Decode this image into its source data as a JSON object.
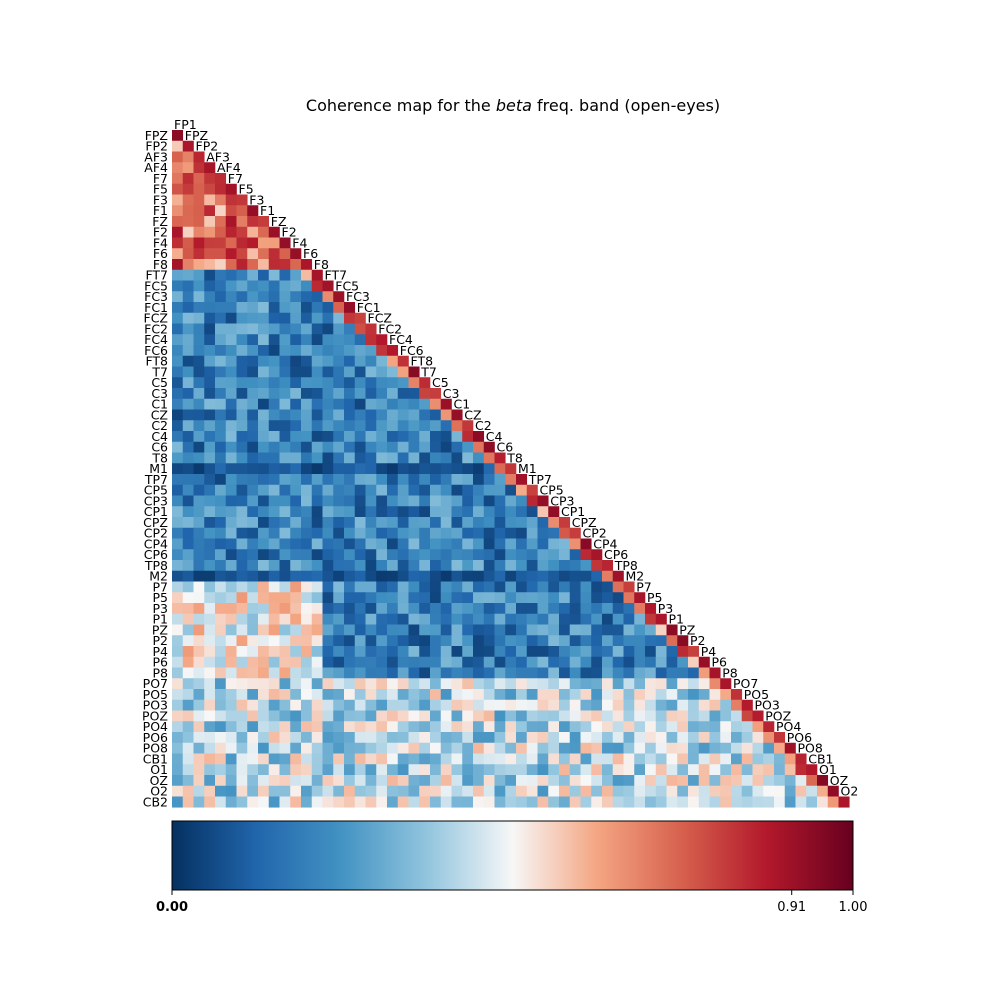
{
  "chart_data": {
    "type": "heatmap",
    "shape": "lower-triangular",
    "title_pre": "Coherence map for the ",
    "title_italic": "beta",
    "title_post": " freq. band (open-eyes)",
    "channels": [
      "FP1",
      "FPZ",
      "FP2",
      "AF3",
      "AF4",
      "F7",
      "F5",
      "F3",
      "F1",
      "FZ",
      "F2",
      "F4",
      "F6",
      "F8",
      "FT7",
      "FC5",
      "FC3",
      "FC1",
      "FCZ",
      "FC2",
      "FC4",
      "FC6",
      "FT8",
      "T7",
      "C5",
      "C3",
      "C1",
      "CZ",
      "C2",
      "C4",
      "C6",
      "T8",
      "M1",
      "TP7",
      "CP5",
      "CP3",
      "CP1",
      "CPZ",
      "CP2",
      "CP4",
      "CP6",
      "TP8",
      "M2",
      "P7",
      "P5",
      "P3",
      "P1",
      "PZ",
      "P2",
      "P4",
      "P6",
      "P8",
      "PO7",
      "PO5",
      "PO3",
      "POZ",
      "PO4",
      "PO6",
      "PO8",
      "CB1",
      "O1",
      "OZ",
      "O2",
      "CB2"
    ],
    "colormap": "RdBu_r",
    "colorbar": {
      "min": 0.0,
      "max": 1.0,
      "ticks": [
        {
          "value": 0.0,
          "label": "0.00",
          "bold": true
        },
        {
          "value": 0.91,
          "label": "0.91",
          "bold": false
        },
        {
          "value": 1.0,
          "label": "1.00",
          "bold": false
        }
      ]
    },
    "value_summary": {
      "diagonal_neighbors": "high (0.75-1.0)",
      "anterior_block": "FP1-F8 moderately high (0.55-0.95)",
      "long_range": "low (0.0-0.3)",
      "posterior_rows": "PO/O/CB rows mid range (0.3-0.6)"
    }
  }
}
